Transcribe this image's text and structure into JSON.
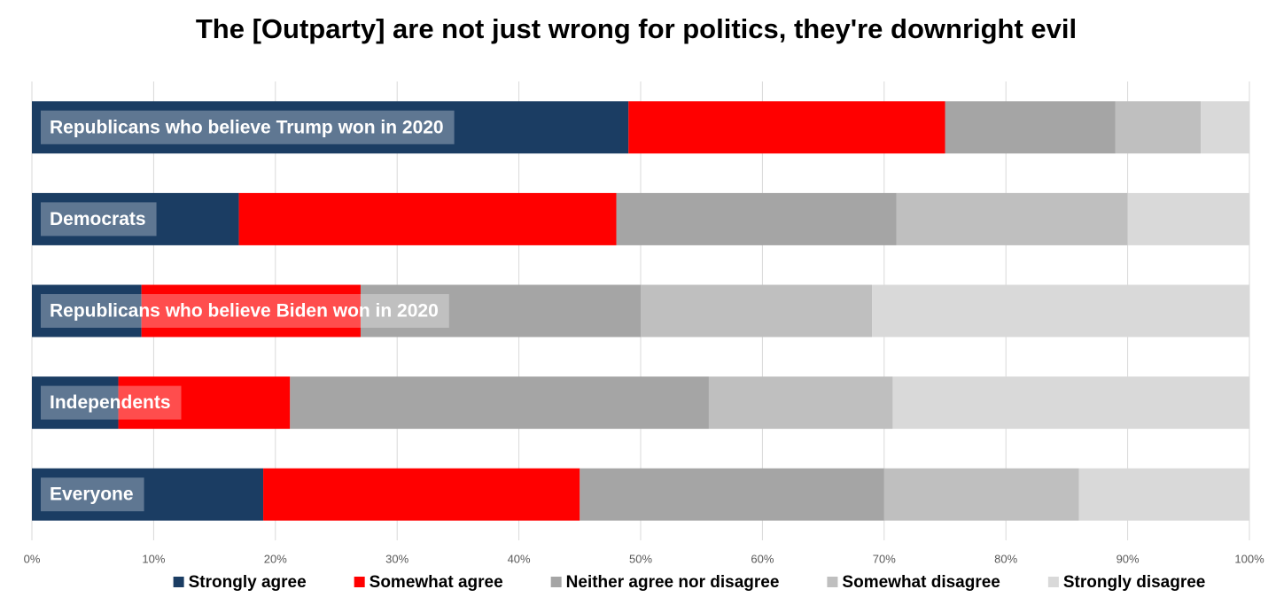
{
  "chart_data": {
    "type": "stacked-bar-horizontal",
    "title": "The [Outparty] are not just wrong for politics, they're downright evil",
    "categories": [
      "Republicans who believe Trump won in 2020",
      "Democrats",
      "Republicans who believe Biden won in 2020",
      "Independents",
      "Everyone"
    ],
    "series": [
      {
        "name": "Strongly agree",
        "color": "#1b3d63",
        "values": [
          49,
          17,
          9,
          7.1,
          19
        ]
      },
      {
        "name": "Somewhat agree",
        "color": "#ff0000",
        "values": [
          26,
          31,
          18,
          14.1,
          26
        ]
      },
      {
        "name": "Neither agree nor disagree",
        "color": "#a5a5a5",
        "values": [
          14,
          23,
          23,
          34.4,
          25
        ]
      },
      {
        "name": "Somewhat disagree",
        "color": "#bfbfbf",
        "values": [
          7,
          19,
          19,
          15.1,
          16
        ]
      },
      {
        "name": "Strongly disagree",
        "color": "#d9d9d9",
        "values": [
          4,
          10,
          31,
          29.3,
          14
        ]
      }
    ],
    "xlim": [
      0,
      100
    ],
    "xticks": [
      {
        "value": 0,
        "label": "0%"
      },
      {
        "value": 10,
        "label": "10%"
      },
      {
        "value": 20,
        "label": "20%"
      },
      {
        "value": 30,
        "label": "30%"
      },
      {
        "value": 40,
        "label": "40%"
      },
      {
        "value": 50,
        "label": "50%"
      },
      {
        "value": 60,
        "label": "60%"
      },
      {
        "value": 70,
        "label": "70%"
      },
      {
        "value": 80,
        "label": "80%"
      },
      {
        "value": 90,
        "label": "90%"
      },
      {
        "value": 100,
        "label": "100%"
      }
    ],
    "grid": true,
    "legend": "bottom"
  }
}
